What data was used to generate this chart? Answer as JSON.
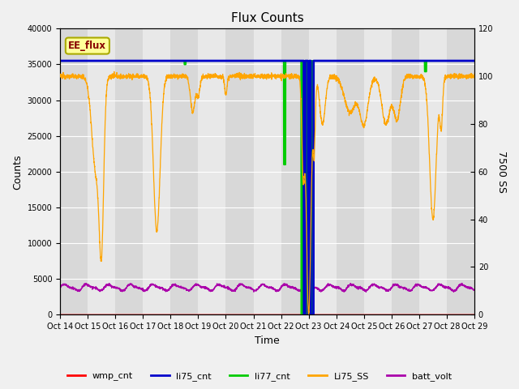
{
  "title": "Flux Counts",
  "xlabel": "Time",
  "ylabel_left": "Counts",
  "ylabel_right": "7500 SS",
  "ylim_left": [
    0,
    40000
  ],
  "ylim_right": [
    0,
    120
  ],
  "fig_bg_color": "#f0f0f0",
  "plot_bg_color": "#e8e8e8",
  "plot_bg_dark": "#d8d8d8",
  "grid_color": "#ffffff",
  "legend_labels": [
    "wmp_cnt",
    "li75_cnt",
    "li77_cnt",
    "Li75_SS",
    "batt_volt"
  ],
  "annotation_label": "EE_flux",
  "annotation_color": "#880000",
  "annotation_bg": "#ffff99",
  "annotation_edge": "#aaaa00",
  "x_tick_labels": [
    "Oct 14",
    "Oct 15",
    "Oct 16",
    "Oct 17",
    "Oct 18",
    "Oct 19",
    "Oct 20",
    "Oct 21",
    "Oct 22",
    "Oct 23",
    "Oct 24",
    "Oct 25",
    "Oct 26",
    "Oct 27",
    "Oct 28",
    "Oct 29"
  ],
  "li75_SS_color": "#ffa500",
  "li77_cnt_color": "#00cc00",
  "li75_cnt_color": "#0000cc",
  "wmp_cnt_color": "#ff0000",
  "batt_volt_color": "#aa00aa",
  "title_fontsize": 11,
  "axis_label_fontsize": 9,
  "tick_fontsize": 7,
  "legend_fontsize": 8
}
